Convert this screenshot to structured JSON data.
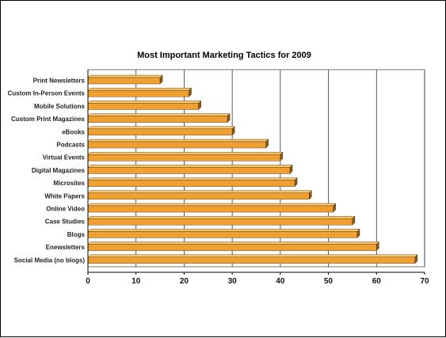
{
  "chart_data": {
    "type": "bar",
    "orientation": "horizontal",
    "title": "Most Important Marketing Tactics for 2009",
    "xlabel": "",
    "ylabel": "",
    "categories": [
      "Print Newsletters",
      "Custom In-Person Events",
      "Mobile Solutions",
      "Custom Print Magazines",
      "eBooks",
      "Podcasts",
      "Virtual Events",
      "Digital Magazines",
      "Microsites",
      "White Papers",
      "Online Video",
      "Case Studies",
      "Blogs",
      "Enewsletters",
      "Social Media (no blogs)"
    ],
    "values": [
      15,
      21,
      23,
      29,
      30,
      37,
      40,
      42,
      43,
      46,
      51,
      55,
      56,
      60,
      68
    ],
    "xlim": [
      0,
      70
    ],
    "xticks": [
      "0",
      "10",
      "20",
      "30",
      "40",
      "50",
      "60",
      "70"
    ],
    "grid": "vertical",
    "legend": "none",
    "colors": {
      "bar_front": "#f0a030",
      "bar_top": "#f8c874",
      "bar_side": "#8a5a14",
      "grid": "#333333"
    }
  }
}
